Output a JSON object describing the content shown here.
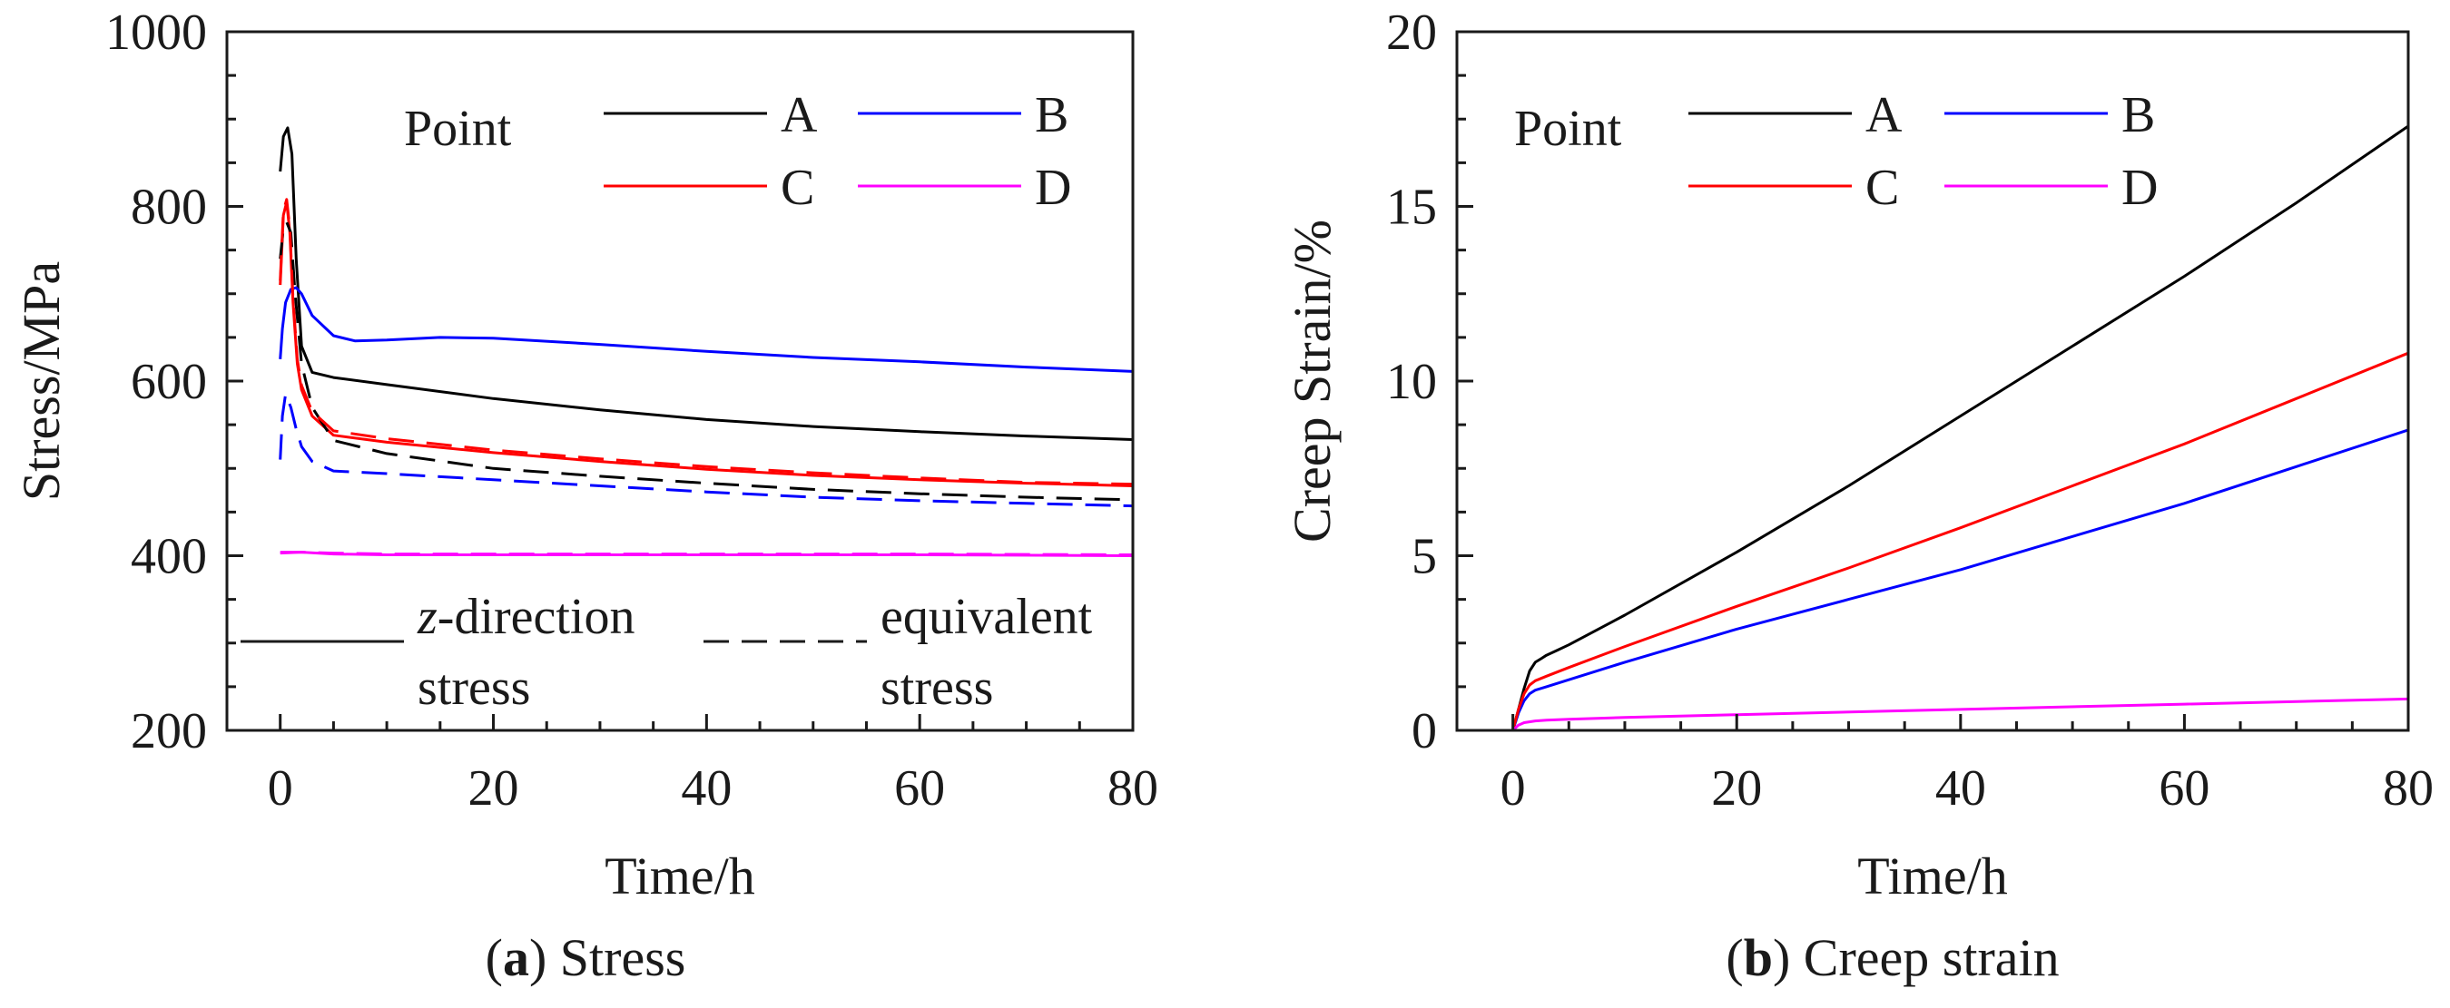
{
  "chart_data": [
    {
      "type": "line",
      "caption": {
        "letter": "a",
        "text": "Stress"
      },
      "xlabel": "Time/h",
      "ylabel": "Stress/MPa",
      "xlim": [
        -5,
        80
      ],
      "ylim": [
        200,
        1000
      ],
      "xticks": [
        0,
        20,
        40,
        60,
        80
      ],
      "yticks": [
        200,
        400,
        600,
        800,
        1000
      ],
      "grid": false,
      "legend": {
        "title": "Point",
        "entries": [
          "A",
          "B",
          "C",
          "D"
        ],
        "placement": "top-right"
      },
      "style_legend": {
        "solid_label_1": "z",
        "solid_label_2": "-direction",
        "solid_label_3": "stress",
        "dashed_label_1": "equivalent",
        "dashed_label_2": "stress"
      },
      "colors": {
        "A": "#000000",
        "B": "#0000ff",
        "C": "#ff0000",
        "D": "#ff00ff"
      },
      "series": [
        {
          "name": "A",
          "style": "solid",
          "x": [
            0,
            0.3,
            0.7,
            1.1,
            1.5,
            2,
            3,
            5,
            10,
            20,
            30,
            40,
            50,
            60,
            70,
            80
          ],
          "y": [
            840,
            880,
            890,
            860,
            740,
            640,
            610,
            604,
            596,
            580,
            567,
            556,
            548,
            542,
            537,
            533
          ]
        },
        {
          "name": "B",
          "style": "solid",
          "x": [
            0,
            0.2,
            0.5,
            1,
            1.5,
            2,
            3,
            5,
            7,
            10,
            15,
            20,
            30,
            40,
            50,
            60,
            70,
            80
          ],
          "y": [
            625,
            660,
            690,
            705,
            707,
            700,
            675,
            652,
            646,
            647,
            650,
            649,
            642,
            634,
            627,
            622,
            616,
            611
          ]
        },
        {
          "name": "C",
          "style": "solid",
          "x": [
            0,
            0.3,
            0.6,
            0.9,
            1.2,
            1.6,
            2,
            3,
            5,
            10,
            20,
            30,
            40,
            50,
            60,
            70,
            80
          ],
          "y": [
            710,
            790,
            805,
            770,
            690,
            620,
            590,
            560,
            538,
            530,
            518,
            508,
            499,
            492,
            487,
            483,
            480
          ]
        },
        {
          "name": "D",
          "style": "solid",
          "x": [
            0,
            2,
            5,
            10,
            20,
            40,
            60,
            80
          ],
          "y": [
            403,
            404,
            402,
            401,
            401,
            401,
            401,
            400
          ]
        },
        {
          "name": "A",
          "style": "dashed",
          "x": [
            0,
            0.3,
            0.6,
            1,
            1.4,
            2,
            3,
            5,
            10,
            20,
            30,
            40,
            50,
            60,
            70,
            80
          ],
          "y": [
            740,
            775,
            782,
            770,
            700,
            620,
            570,
            532,
            517,
            500,
            491,
            483,
            476,
            471,
            467,
            464
          ]
        },
        {
          "name": "B",
          "style": "dashed",
          "x": [
            0,
            0.2,
            0.5,
            1,
            1.5,
            2,
            3,
            5,
            10,
            20,
            30,
            40,
            50,
            60,
            70,
            80
          ],
          "y": [
            510,
            560,
            585,
            570,
            545,
            525,
            508,
            497,
            494,
            487,
            480,
            473,
            467,
            463,
            460,
            457
          ]
        },
        {
          "name": "C",
          "style": "dashed",
          "x": [
            0,
            0.3,
            0.6,
            0.9,
            1.2,
            1.6,
            2,
            3,
            5,
            10,
            20,
            30,
            40,
            50,
            60,
            70,
            80
          ],
          "y": [
            715,
            795,
            808,
            775,
            695,
            625,
            595,
            565,
            543,
            534,
            521,
            511,
            502,
            495,
            489,
            484,
            482
          ]
        },
        {
          "name": "D",
          "style": "dashed",
          "x": [
            0,
            2,
            5,
            10,
            20,
            40,
            60,
            80
          ],
          "y": [
            404,
            404,
            403,
            402,
            402,
            402,
            402,
            401
          ]
        }
      ]
    },
    {
      "type": "line",
      "caption": {
        "letter": "b",
        "text": "Creep strain"
      },
      "xlabel": "Time/h",
      "ylabel": "Creep Strain/%",
      "xlim": [
        -5,
        80
      ],
      "ylim": [
        0,
        20
      ],
      "xticks": [
        0,
        20,
        40,
        60,
        80
      ],
      "yticks": [
        0,
        5,
        10,
        15,
        20
      ],
      "grid": false,
      "legend": {
        "title": "Point",
        "entries": [
          "A",
          "B",
          "C",
          "D"
        ],
        "placement": "top-left"
      },
      "colors": {
        "A": "#000000",
        "B": "#0000ff",
        "C": "#ff0000",
        "D": "#ff00ff"
      },
      "series": [
        {
          "name": "A",
          "style": "solid",
          "x": [
            0,
            0.5,
            1,
            1.5,
            2,
            2.5,
            3,
            4,
            5,
            10,
            20,
            30,
            40,
            50,
            60,
            70,
            80
          ],
          "y": [
            0,
            0.6,
            1.2,
            1.7,
            1.95,
            2.05,
            2.15,
            2.3,
            2.45,
            3.3,
            5.1,
            7.0,
            9.0,
            11.0,
            13.0,
            15.1,
            17.3
          ]
        },
        {
          "name": "B",
          "style": "solid",
          "x": [
            0,
            0.5,
            1,
            1.5,
            2,
            3,
            5,
            10,
            20,
            30,
            40,
            50,
            60,
            70,
            80
          ],
          "y": [
            0,
            0.5,
            0.85,
            1.05,
            1.15,
            1.25,
            1.45,
            1.95,
            2.9,
            3.75,
            4.6,
            5.55,
            6.5,
            7.55,
            8.6
          ]
        },
        {
          "name": "C",
          "style": "solid",
          "x": [
            0,
            0.5,
            1,
            1.5,
            2,
            3,
            5,
            10,
            20,
            30,
            40,
            50,
            60,
            70,
            80
          ],
          "y": [
            0,
            0.6,
            1.05,
            1.3,
            1.42,
            1.55,
            1.8,
            2.4,
            3.55,
            4.65,
            5.8,
            7.0,
            8.2,
            9.5,
            10.8
          ]
        },
        {
          "name": "D",
          "style": "solid",
          "x": [
            0,
            0.5,
            1,
            2,
            3,
            5,
            10,
            20,
            40,
            60,
            80
          ],
          "y": [
            0,
            0.15,
            0.22,
            0.27,
            0.29,
            0.32,
            0.37,
            0.45,
            0.6,
            0.75,
            0.9
          ]
        }
      ]
    }
  ]
}
